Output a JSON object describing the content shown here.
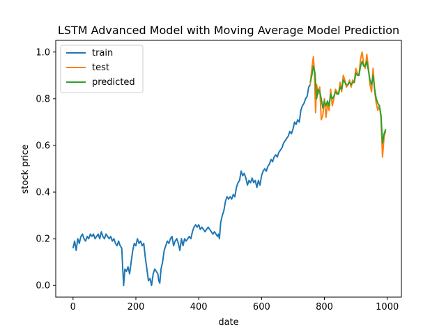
{
  "chart_data": {
    "type": "line",
    "title": "LSTM Advanced Model with Moving Average Model Prediction",
    "xlabel": "date",
    "ylabel": "stock price",
    "xlim": [
      -55,
      1045
    ],
    "ylim": [
      -0.05,
      1.05
    ],
    "xticks": [
      0,
      200,
      400,
      600,
      800,
      1000
    ],
    "yticks": [
      0.0,
      0.2,
      0.4,
      0.6,
      0.8,
      1.0
    ],
    "xtick_labels": [
      "0",
      "200",
      "400",
      "600",
      "800",
      "1000"
    ],
    "ytick_labels": [
      "0.0",
      "0.2",
      "0.4",
      "0.6",
      "0.8",
      "1.0"
    ],
    "grid": false,
    "legend_position": "upper-left",
    "series": [
      {
        "name": "train",
        "color": "#1f77b4",
        "x": [
          0,
          5,
          10,
          15,
          20,
          25,
          30,
          35,
          40,
          45,
          50,
          55,
          60,
          65,
          70,
          75,
          80,
          85,
          90,
          95,
          100,
          105,
          110,
          115,
          120,
          125,
          130,
          135,
          140,
          145,
          150,
          155,
          158,
          161,
          165,
          170,
          175,
          180,
          185,
          190,
          195,
          200,
          205,
          210,
          215,
          220,
          225,
          230,
          235,
          240,
          245,
          250,
          255,
          260,
          265,
          270,
          273,
          276,
          280,
          285,
          290,
          295,
          300,
          305,
          310,
          315,
          320,
          325,
          330,
          335,
          340,
          345,
          350,
          355,
          360,
          365,
          370,
          375,
          380,
          385,
          390,
          395,
          400,
          405,
          410,
          415,
          420,
          425,
          430,
          435,
          440,
          445,
          450,
          455,
          460,
          463,
          466,
          470,
          475,
          480,
          485,
          490,
          495,
          500,
          505,
          510,
          515,
          520,
          525,
          530,
          535,
          540,
          545,
          550,
          555,
          560,
          565,
          570,
          575,
          580,
          585,
          590,
          595,
          600,
          605,
          610,
          615,
          620,
          625,
          630,
          635,
          640,
          645,
          650,
          655,
          660,
          665,
          670,
          675,
          680,
          685,
          690,
          695,
          700,
          705,
          710,
          715,
          720,
          725,
          730,
          735,
          740,
          745,
          750,
          755
        ],
        "y": [
          0.16,
          0.19,
          0.15,
          0.2,
          0.18,
          0.21,
          0.22,
          0.2,
          0.19,
          0.21,
          0.2,
          0.22,
          0.21,
          0.22,
          0.2,
          0.21,
          0.22,
          0.2,
          0.23,
          0.21,
          0.2,
          0.22,
          0.21,
          0.2,
          0.21,
          0.19,
          0.2,
          0.18,
          0.17,
          0.19,
          0.17,
          0.16,
          0.08,
          0.0,
          0.07,
          0.06,
          0.08,
          0.05,
          0.1,
          0.15,
          0.18,
          0.17,
          0.2,
          0.18,
          0.19,
          0.17,
          0.18,
          0.12,
          0.07,
          0.02,
          0.03,
          0.0,
          0.05,
          0.07,
          0.06,
          0.05,
          0.02,
          0.01,
          0.07,
          0.1,
          0.15,
          0.17,
          0.19,
          0.18,
          0.2,
          0.21,
          0.17,
          0.19,
          0.2,
          0.18,
          0.15,
          0.2,
          0.17,
          0.2,
          0.19,
          0.2,
          0.21,
          0.2,
          0.23,
          0.25,
          0.26,
          0.25,
          0.26,
          0.24,
          0.25,
          0.24,
          0.23,
          0.24,
          0.25,
          0.24,
          0.23,
          0.22,
          0.23,
          0.22,
          0.21,
          0.22,
          0.2,
          0.27,
          0.3,
          0.32,
          0.36,
          0.38,
          0.37,
          0.38,
          0.37,
          0.39,
          0.38,
          0.42,
          0.44,
          0.45,
          0.49,
          0.47,
          0.48,
          0.46,
          0.43,
          0.45,
          0.44,
          0.46,
          0.44,
          0.45,
          0.42,
          0.45,
          0.43,
          0.47,
          0.49,
          0.5,
          0.49,
          0.51,
          0.52,
          0.54,
          0.53,
          0.55,
          0.56,
          0.55,
          0.57,
          0.58,
          0.59,
          0.61,
          0.62,
          0.63,
          0.64,
          0.66,
          0.65,
          0.67,
          0.7,
          0.69,
          0.71,
          0.7,
          0.75,
          0.77,
          0.78,
          0.8,
          0.81,
          0.85,
          0.86
        ]
      },
      {
        "name": "test",
        "color": "#ff7f0e",
        "x": [
          755,
          760,
          765,
          768,
          772,
          775,
          780,
          785,
          790,
          795,
          800,
          805,
          810,
          815,
          820,
          825,
          830,
          835,
          840,
          845,
          850,
          855,
          860,
          865,
          870,
          875,
          880,
          885,
          890,
          895,
          900,
          905,
          910,
          915,
          920,
          925,
          930,
          935,
          940,
          945,
          950,
          955,
          960,
          965,
          970,
          975,
          980,
          985,
          990,
          995
        ],
        "y": [
          0.86,
          0.93,
          0.98,
          0.92,
          0.74,
          0.86,
          0.82,
          0.85,
          0.71,
          0.73,
          0.8,
          0.72,
          0.78,
          0.75,
          0.84,
          0.77,
          0.8,
          0.84,
          0.83,
          0.82,
          0.87,
          0.83,
          0.9,
          0.88,
          0.85,
          0.86,
          0.88,
          0.85,
          0.88,
          0.87,
          0.93,
          0.91,
          0.9,
          0.97,
          1.0,
          0.95,
          0.93,
          0.99,
          0.93,
          0.86,
          0.83,
          0.93,
          0.83,
          0.78,
          0.75,
          0.77,
          0.72,
          0.55,
          0.64,
          0.66
        ]
      },
      {
        "name": "predicted",
        "color": "#2ca02c",
        "x": [
          755,
          760,
          765,
          770,
          775,
          780,
          785,
          790,
          795,
          800,
          805,
          810,
          815,
          820,
          825,
          830,
          835,
          840,
          845,
          850,
          855,
          860,
          865,
          870,
          875,
          880,
          885,
          890,
          895,
          900,
          905,
          910,
          915,
          920,
          925,
          930,
          935,
          940,
          945,
          950,
          955,
          960,
          965,
          970,
          975,
          980,
          985,
          990,
          995
        ],
        "y": [
          0.87,
          0.9,
          0.94,
          0.91,
          0.8,
          0.84,
          0.83,
          0.8,
          0.76,
          0.79,
          0.77,
          0.79,
          0.77,
          0.82,
          0.8,
          0.81,
          0.83,
          0.82,
          0.82,
          0.85,
          0.84,
          0.88,
          0.87,
          0.86,
          0.86,
          0.87,
          0.86,
          0.87,
          0.87,
          0.91,
          0.9,
          0.9,
          0.94,
          0.96,
          0.94,
          0.94,
          0.96,
          0.92,
          0.88,
          0.86,
          0.9,
          0.84,
          0.8,
          0.78,
          0.77,
          0.73,
          0.61,
          0.65,
          0.67
        ]
      }
    ]
  }
}
